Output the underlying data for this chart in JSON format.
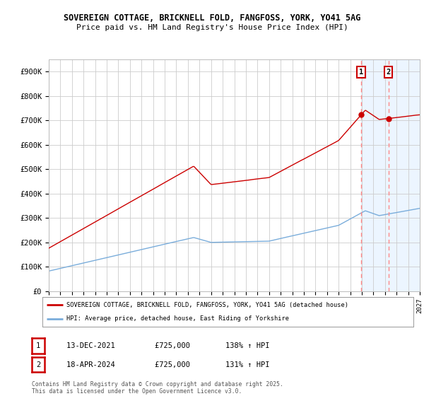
{
  "title_line1": "SOVEREIGN COTTAGE, BRICKNELL FOLD, FANGFOSS, YORK, YO41 5AG",
  "title_line2": "Price paid vs. HM Land Registry's House Price Index (HPI)",
  "red_line_color": "#cc0000",
  "blue_line_color": "#7aaddb",
  "background_color": "#ffffff",
  "grid_color": "#cccccc",
  "highlight_bg": "#ddeeff",
  "dashed_line_color": "#ff8888",
  "ylim": [
    0,
    950000
  ],
  "yticks": [
    0,
    100000,
    200000,
    300000,
    400000,
    500000,
    600000,
    700000,
    800000,
    900000
  ],
  "ytick_labels": [
    "£0",
    "£100K",
    "£200K",
    "£300K",
    "£400K",
    "£500K",
    "£600K",
    "£700K",
    "£800K",
    "£900K"
  ],
  "x_start_year": 1995,
  "x_end_year": 2027,
  "sale1_year": 2021.95,
  "sale1_price": 725000,
  "sale1_label": "1",
  "sale1_date": "13-DEC-2021",
  "sale1_hpi": "138%",
  "sale2_year": 2024.3,
  "sale2_price": 725000,
  "sale2_label": "2",
  "sale2_date": "18-APR-2024",
  "sale2_hpi": "131%",
  "legend_label1": "SOVEREIGN COTTAGE, BRICKNELL FOLD, FANGFOSS, YORK, YO41 5AG (detached house)",
  "legend_label2": "HPI: Average price, detached house, East Riding of Yorkshire",
  "footer_text": "Contains HM Land Registry data © Crown copyright and database right 2025.\nThis data is licensed under the Open Government Licence v3.0.",
  "table_row1": [
    "1",
    "13-DEC-2021",
    "£725,000",
    "138% ↑ HPI"
  ],
  "table_row2": [
    "2",
    "18-APR-2024",
    "£725,000",
    "131% ↑ HPI"
  ]
}
